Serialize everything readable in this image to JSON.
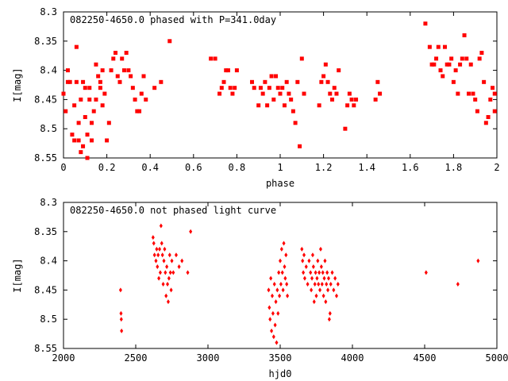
{
  "chart_data": [
    {
      "type": "scatter",
      "title": "082250-4650.0 phased with P=341.0day",
      "xlabel": "phase",
      "ylabel": "I[mag]",
      "xlim": [
        0,
        2
      ],
      "ylim": [
        8.3,
        8.55
      ],
      "y_inverted": true,
      "xticks": [
        0,
        0.2,
        0.4,
        0.6,
        0.8,
        1,
        1.2,
        1.4,
        1.6,
        1.8,
        2
      ],
      "xtick_labels": [
        "0",
        "0.2",
        "0.4",
        "0.6",
        "0.8",
        "1",
        "1.2",
        "1.4",
        "1.6",
        "1.8",
        "2"
      ],
      "yticks": [
        8.3,
        8.35,
        8.4,
        8.45,
        8.5,
        8.55
      ],
      "ytick_labels": [
        "8.3",
        "8.35",
        "8.4",
        "8.45",
        "8.5",
        "8.55"
      ],
      "marker": "square",
      "color": "#ff0000",
      "points": [
        [
          0.0,
          8.44
        ],
        [
          0.01,
          8.47
        ],
        [
          0.02,
          8.4
        ],
        [
          0.02,
          8.42
        ],
        [
          0.03,
          8.42
        ],
        [
          0.04,
          8.51
        ],
        [
          0.05,
          8.52
        ],
        [
          0.05,
          8.46
        ],
        [
          0.06,
          8.36
        ],
        [
          0.06,
          8.42
        ],
        [
          0.07,
          8.49
        ],
        [
          0.07,
          8.52
        ],
        [
          0.08,
          8.54
        ],
        [
          0.08,
          8.45
        ],
        [
          0.09,
          8.42
        ],
        [
          0.09,
          8.53
        ],
        [
          0.1,
          8.48
        ],
        [
          0.1,
          8.43
        ],
        [
          0.11,
          8.55
        ],
        [
          0.11,
          8.51
        ],
        [
          0.12,
          8.43
        ],
        [
          0.12,
          8.45
        ],
        [
          0.13,
          8.49
        ],
        [
          0.13,
          8.52
        ],
        [
          0.14,
          8.47
        ],
        [
          0.15,
          8.45
        ],
        [
          0.15,
          8.39
        ],
        [
          0.16,
          8.41
        ],
        [
          0.17,
          8.42
        ],
        [
          0.17,
          8.43
        ],
        [
          0.18,
          8.46
        ],
        [
          0.18,
          8.4
        ],
        [
          0.19,
          8.44
        ],
        [
          0.2,
          8.52
        ],
        [
          0.21,
          8.49
        ],
        [
          0.22,
          8.4
        ],
        [
          0.23,
          8.38
        ],
        [
          0.24,
          8.37
        ],
        [
          0.25,
          8.41
        ],
        [
          0.26,
          8.42
        ],
        [
          0.27,
          8.38
        ],
        [
          0.28,
          8.4
        ],
        [
          0.29,
          8.37
        ],
        [
          0.3,
          8.4
        ],
        [
          0.31,
          8.41
        ],
        [
          0.32,
          8.43
        ],
        [
          0.33,
          8.45
        ],
        [
          0.34,
          8.47
        ],
        [
          0.35,
          8.47
        ],
        [
          0.36,
          8.44
        ],
        [
          0.37,
          8.41
        ],
        [
          0.38,
          8.45
        ],
        [
          0.42,
          8.43
        ],
        [
          0.45,
          8.42
        ],
        [
          0.49,
          8.35
        ],
        [
          0.68,
          8.38
        ],
        [
          0.7,
          8.38
        ],
        [
          0.72,
          8.44
        ],
        [
          0.73,
          8.43
        ],
        [
          0.74,
          8.42
        ],
        [
          0.75,
          8.4
        ],
        [
          0.76,
          8.4
        ],
        [
          0.77,
          8.43
        ],
        [
          0.78,
          8.44
        ],
        [
          0.79,
          8.43
        ],
        [
          0.8,
          8.4
        ],
        [
          0.87,
          8.42
        ],
        [
          0.88,
          8.43
        ],
        [
          0.9,
          8.46
        ],
        [
          0.91,
          8.43
        ],
        [
          0.92,
          8.44
        ],
        [
          0.93,
          8.42
        ],
        [
          0.94,
          8.46
        ],
        [
          0.95,
          8.43
        ],
        [
          0.96,
          8.41
        ],
        [
          0.97,
          8.45
        ],
        [
          0.98,
          8.41
        ],
        [
          0.99,
          8.43
        ],
        [
          1.0,
          8.44
        ],
        [
          1.01,
          8.43
        ],
        [
          1.02,
          8.46
        ],
        [
          1.03,
          8.42
        ],
        [
          1.04,
          8.44
        ],
        [
          1.05,
          8.45
        ],
        [
          1.06,
          8.47
        ],
        [
          1.07,
          8.49
        ],
        [
          1.08,
          8.42
        ],
        [
          1.09,
          8.53
        ],
        [
          1.1,
          8.38
        ],
        [
          1.11,
          8.44
        ],
        [
          1.18,
          8.46
        ],
        [
          1.19,
          8.42
        ],
        [
          1.2,
          8.41
        ],
        [
          1.21,
          8.39
        ],
        [
          1.22,
          8.42
        ],
        [
          1.23,
          8.44
        ],
        [
          1.24,
          8.45
        ],
        [
          1.25,
          8.43
        ],
        [
          1.26,
          8.44
        ],
        [
          1.27,
          8.4
        ],
        [
          1.3,
          8.5
        ],
        [
          1.31,
          8.46
        ],
        [
          1.32,
          8.44
        ],
        [
          1.33,
          8.45
        ],
        [
          1.34,
          8.46
        ],
        [
          1.35,
          8.45
        ],
        [
          1.44,
          8.45
        ],
        [
          1.45,
          8.42
        ],
        [
          1.46,
          8.44
        ],
        [
          1.67,
          8.32
        ],
        [
          1.69,
          8.36
        ],
        [
          1.7,
          8.39
        ],
        [
          1.71,
          8.39
        ],
        [
          1.72,
          8.38
        ],
        [
          1.73,
          8.36
        ],
        [
          1.74,
          8.4
        ],
        [
          1.75,
          8.41
        ],
        [
          1.76,
          8.36
        ],
        [
          1.77,
          8.39
        ],
        [
          1.78,
          8.39
        ],
        [
          1.79,
          8.38
        ],
        [
          1.8,
          8.42
        ],
        [
          1.81,
          8.4
        ],
        [
          1.82,
          8.44
        ],
        [
          1.83,
          8.39
        ],
        [
          1.84,
          8.38
        ],
        [
          1.85,
          8.34
        ],
        [
          1.86,
          8.38
        ],
        [
          1.87,
          8.44
        ],
        [
          1.88,
          8.39
        ],
        [
          1.89,
          8.44
        ],
        [
          1.9,
          8.45
        ],
        [
          1.91,
          8.47
        ],
        [
          1.92,
          8.38
        ],
        [
          1.93,
          8.37
        ],
        [
          1.94,
          8.42
        ],
        [
          1.95,
          8.49
        ],
        [
          1.96,
          8.48
        ],
        [
          1.97,
          8.45
        ],
        [
          1.98,
          8.43
        ],
        [
          1.99,
          8.44
        ],
        [
          1.99,
          8.47
        ]
      ]
    },
    {
      "type": "scatter",
      "title": "082250-4650.0 not phased light curve",
      "xlabel": "hjd0",
      "ylabel": "I[mag]",
      "xlim": [
        2000,
        5000
      ],
      "ylim": [
        8.3,
        8.55
      ],
      "y_inverted": true,
      "xticks": [
        2000,
        2500,
        3000,
        3500,
        4000,
        4500,
        5000
      ],
      "xtick_labels": [
        "2000",
        "2500",
        "3000",
        "3500",
        "4000",
        "4500",
        "5000"
      ],
      "yticks": [
        8.3,
        8.35,
        8.4,
        8.45,
        8.5,
        8.55
      ],
      "ytick_labels": [
        "8.3",
        "8.35",
        "8.4",
        "8.45",
        "8.5",
        "8.55"
      ],
      "marker": "diamond",
      "color": "#ff0000",
      "points": [
        [
          2395,
          8.45
        ],
        [
          2398,
          8.49
        ],
        [
          2400,
          8.5
        ],
        [
          2402,
          8.52
        ],
        [
          2620,
          8.36
        ],
        [
          2625,
          8.37
        ],
        [
          2630,
          8.39
        ],
        [
          2640,
          8.4
        ],
        [
          2645,
          8.38
        ],
        [
          2650,
          8.41
        ],
        [
          2655,
          8.39
        ],
        [
          2660,
          8.43
        ],
        [
          2665,
          8.38
        ],
        [
          2670,
          8.42
        ],
        [
          2675,
          8.34
        ],
        [
          2680,
          8.37
        ],
        [
          2685,
          8.39
        ],
        [
          2690,
          8.44
        ],
        [
          2695,
          8.4
        ],
        [
          2700,
          8.38
        ],
        [
          2705,
          8.42
        ],
        [
          2710,
          8.46
        ],
        [
          2715,
          8.41
        ],
        [
          2720,
          8.44
        ],
        [
          2725,
          8.47
        ],
        [
          2730,
          8.43
        ],
        [
          2735,
          8.39
        ],
        [
          2740,
          8.42
        ],
        [
          2745,
          8.45
        ],
        [
          2750,
          8.4
        ],
        [
          2760,
          8.42
        ],
        [
          2780,
          8.39
        ],
        [
          2800,
          8.41
        ],
        [
          2820,
          8.4
        ],
        [
          2860,
          8.42
        ],
        [
          2880,
          8.35
        ],
        [
          3420,
          8.45
        ],
        [
          3425,
          8.48
        ],
        [
          3430,
          8.5
        ],
        [
          3435,
          8.43
        ],
        [
          3440,
          8.52
        ],
        [
          3445,
          8.46
        ],
        [
          3450,
          8.49
        ],
        [
          3455,
          8.53
        ],
        [
          3460,
          8.44
        ],
        [
          3465,
          8.51
        ],
        [
          3470,
          8.47
        ],
        [
          3475,
          8.54
        ],
        [
          3480,
          8.45
        ],
        [
          3485,
          8.49
        ],
        [
          3490,
          8.42
        ],
        [
          3495,
          8.46
        ],
        [
          3500,
          8.4
        ],
        [
          3505,
          8.44
        ],
        [
          3510,
          8.38
        ],
        [
          3515,
          8.42
        ],
        [
          3520,
          8.45
        ],
        [
          3525,
          8.37
        ],
        [
          3530,
          8.41
        ],
        [
          3535,
          8.43
        ],
        [
          3540,
          8.39
        ],
        [
          3545,
          8.44
        ],
        [
          3550,
          8.46
        ],
        [
          3650,
          8.38
        ],
        [
          3655,
          8.4
        ],
        [
          3660,
          8.42
        ],
        [
          3665,
          8.39
        ],
        [
          3670,
          8.43
        ],
        [
          3680,
          8.41
        ],
        [
          3690,
          8.44
        ],
        [
          3700,
          8.4
        ],
        [
          3710,
          8.42
        ],
        [
          3715,
          8.45
        ],
        [
          3720,
          8.43
        ],
        [
          3725,
          8.39
        ],
        [
          3730,
          8.41
        ],
        [
          3735,
          8.47
        ],
        [
          3740,
          8.44
        ],
        [
          3745,
          8.42
        ],
        [
          3750,
          8.46
        ],
        [
          3755,
          8.43
        ],
        [
          3760,
          8.4
        ],
        [
          3765,
          8.44
        ],
        [
          3770,
          8.42
        ],
        [
          3775,
          8.45
        ],
        [
          3780,
          8.38
        ],
        [
          3785,
          8.41
        ],
        [
          3790,
          8.44
        ],
        [
          3795,
          8.42
        ],
        [
          3800,
          8.46
        ],
        [
          3805,
          8.43
        ],
        [
          3810,
          8.4
        ],
        [
          3815,
          8.47
        ],
        [
          3820,
          8.44
        ],
        [
          3825,
          8.42
        ],
        [
          3830,
          8.45
        ],
        [
          3835,
          8.43
        ],
        [
          3840,
          8.5
        ],
        [
          3845,
          8.49
        ],
        [
          3850,
          8.44
        ],
        [
          3860,
          8.42
        ],
        [
          3870,
          8.45
        ],
        [
          3880,
          8.43
        ],
        [
          3890,
          8.46
        ],
        [
          3900,
          8.44
        ],
        [
          4510,
          8.42
        ],
        [
          4730,
          8.44
        ],
        [
          4870,
          8.4
        ]
      ]
    }
  ]
}
